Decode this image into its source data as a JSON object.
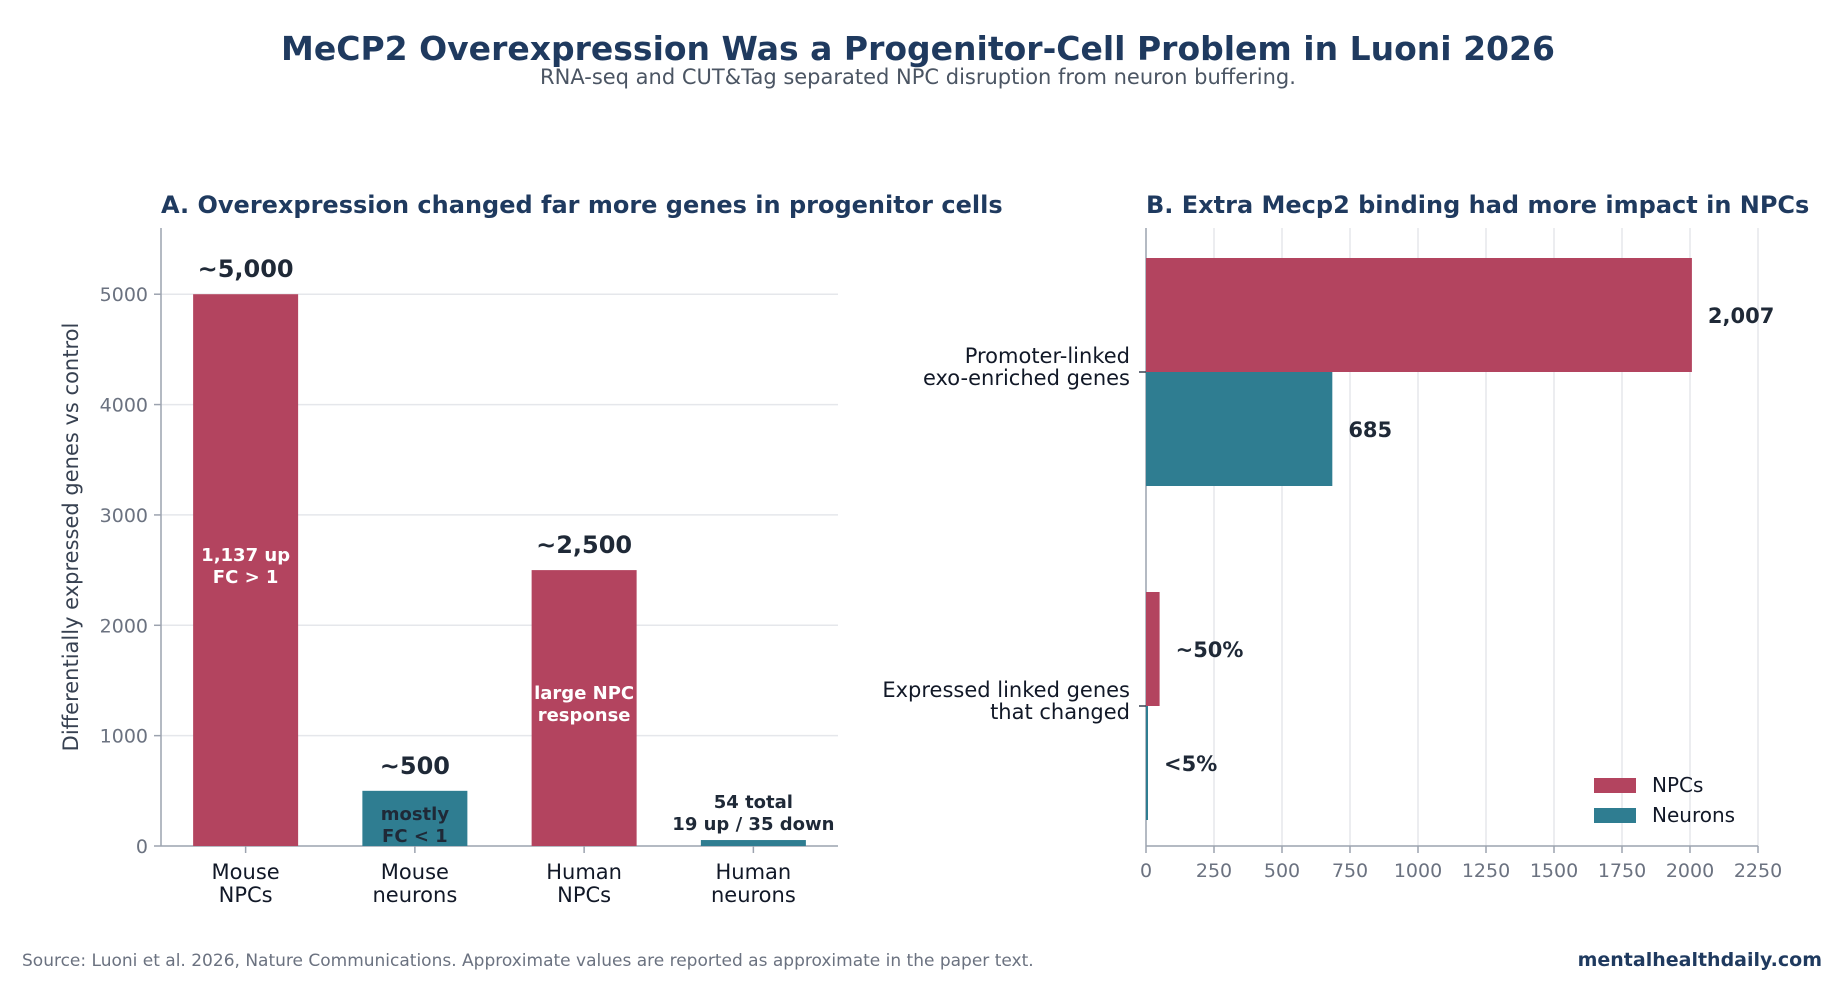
{
  "header": {
    "title": "MeCP2 Overexpression Was a Progenitor-Cell Problem in Luoni 2026",
    "subtitle": "RNA-seq and CUT&Tag separated NPC disruption from neuron buffering."
  },
  "footer": {
    "source": "Source: Luoni et al. 2026, Nature Communications. Approximate values are reported as approximate in the paper text.",
    "brand": "mentalhealthdaily.com"
  },
  "colors": {
    "npc": "#b3445f",
    "neuron": "#2f7d91",
    "title": "#1f3a5f",
    "grid": "#e5e7eb",
    "axis": "#9ca3af",
    "tick_text": "#6b7280"
  },
  "chart_data": [
    {
      "type": "bar",
      "title": "A. Overexpression changed far more genes in progenitor cells",
      "xlabel": "",
      "ylabel": "Differentially expressed genes vs control",
      "ylim": [
        0,
        5600
      ],
      "yticks": [
        0,
        1000,
        2000,
        3000,
        4000,
        5000
      ],
      "grid": "horizontal",
      "categories": [
        [
          "Mouse",
          "NPCs"
        ],
        [
          "Mouse",
          "neurons"
        ],
        [
          "Human",
          "NPCs"
        ],
        [
          "Human",
          "neurons"
        ]
      ],
      "values": [
        5000,
        500,
        2500,
        54
      ],
      "bar_types": [
        "npc",
        "neuron",
        "npc",
        "neuron"
      ],
      "value_labels": [
        "~5,000",
        "~500",
        "~2,500",
        ""
      ],
      "inner_labels": [
        [
          "1,137 up",
          "FC > 1"
        ],
        [
          "mostly",
          "FC < 1"
        ],
        [
          "large NPC",
          "response"
        ],
        []
      ],
      "above_labels": [
        [],
        [],
        [],
        [
          "54 total",
          "19 up / 35 down"
        ]
      ]
    },
    {
      "type": "bar",
      "orientation": "horizontal",
      "title": "B. Extra Mecp2 binding had more impact in NPCs",
      "xlabel": "",
      "ylabel": "",
      "xlim": [
        0,
        2250
      ],
      "xticks": [
        0,
        250,
        500,
        750,
        1000,
        1250,
        1500,
        1750,
        2000,
        2250
      ],
      "grid": "vertical",
      "legend_position": "lower-right",
      "categories": [
        [
          "Promoter-linked",
          "exo-enriched genes"
        ],
        [
          "Expressed linked genes",
          "that changed"
        ]
      ],
      "series": [
        {
          "name": "NPCs",
          "color_key": "npc",
          "values": [
            2007,
            50
          ],
          "value_labels": [
            "2,007",
            "~50%"
          ]
        },
        {
          "name": "Neurons",
          "color_key": "neuron",
          "values": [
            685,
            5
          ],
          "value_labels": [
            "685",
            "<5%"
          ]
        }
      ]
    }
  ]
}
